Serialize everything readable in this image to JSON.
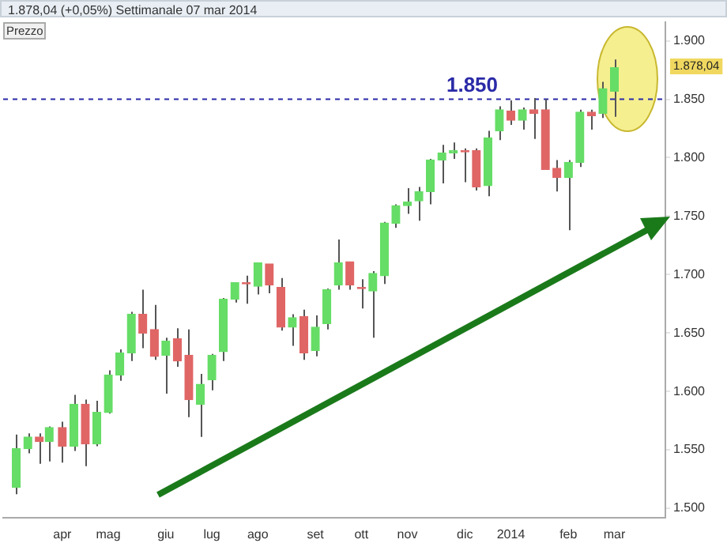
{
  "chart_data": {
    "type": "candlestick",
    "title": "1.878,04 (+0,05%)    Settimanale  07 mar 2014",
    "x": [
      "2013-03-08",
      "2013-03-15",
      "2013-03-22",
      "2013-03-28",
      "2013-04-05",
      "2013-04-12",
      "2013-04-19",
      "2013-04-26",
      "2013-05-03",
      "2013-05-10",
      "2013-05-17",
      "2013-05-24",
      "2013-05-31",
      "2013-06-07",
      "2013-06-14",
      "2013-06-21",
      "2013-06-28",
      "2013-07-05",
      "2013-07-12",
      "2013-07-19",
      "2013-07-26",
      "2013-08-02",
      "2013-08-09",
      "2013-08-16",
      "2013-08-23",
      "2013-08-30",
      "2013-09-06",
      "2013-09-13",
      "2013-09-20",
      "2013-09-27",
      "2013-10-04",
      "2013-10-11",
      "2013-10-18",
      "2013-10-25",
      "2013-11-01",
      "2013-11-08",
      "2013-11-15",
      "2013-11-22",
      "2013-11-29",
      "2013-12-06",
      "2013-12-13",
      "2013-12-20",
      "2013-12-27",
      "2014-01-03",
      "2014-01-10",
      "2014-01-17",
      "2014-01-24",
      "2014-01-31",
      "2014-02-07",
      "2014-02-14",
      "2014-02-21",
      "2014-02-28",
      "2014-03-07"
    ],
    "ohlc": [
      [
        1518,
        1563,
        1512,
        1551
      ],
      [
        1551,
        1564,
        1547,
        1561
      ],
      [
        1561,
        1564,
        1538,
        1557
      ],
      [
        1557,
        1570,
        1540,
        1569
      ],
      [
        1569,
        1574,
        1539,
        1553
      ],
      [
        1553,
        1597,
        1549,
        1589
      ],
      [
        1589,
        1593,
        1536,
        1555
      ],
      [
        1555,
        1592,
        1553,
        1582
      ],
      [
        1582,
        1618,
        1581,
        1614
      ],
      [
        1614,
        1636,
        1609,
        1633
      ],
      [
        1633,
        1668,
        1626,
        1666
      ],
      [
        1666,
        1687,
        1637,
        1650
      ],
      [
        1653,
        1674,
        1627,
        1630
      ],
      [
        1631,
        1646,
        1598,
        1643
      ],
      [
        1645,
        1654,
        1621,
        1626
      ],
      [
        1631,
        1653,
        1578,
        1593
      ],
      [
        1589,
        1615,
        1561,
        1606
      ],
      [
        1610,
        1632,
        1601,
        1631
      ],
      [
        1634,
        1680,
        1626,
        1679
      ],
      [
        1679,
        1693,
        1676,
        1693
      ],
      [
        1693,
        1699,
        1675,
        1692
      ],
      [
        1690,
        1710,
        1683,
        1710
      ],
      [
        1709,
        1709,
        1684,
        1691
      ],
      [
        1689,
        1697,
        1652,
        1655
      ],
      [
        1655,
        1666,
        1639,
        1663
      ],
      [
        1664,
        1670,
        1627,
        1633
      ],
      [
        1635,
        1665,
        1630,
        1655
      ],
      [
        1658,
        1688,
        1653,
        1687
      ],
      [
        1691,
        1730,
        1687,
        1710
      ],
      [
        1711,
        1711,
        1687,
        1691
      ],
      [
        1689,
        1696,
        1671,
        1688
      ],
      [
        1686,
        1703,
        1646,
        1701
      ],
      [
        1699,
        1745,
        1692,
        1744
      ],
      [
        1744,
        1760,
        1740,
        1759
      ],
      [
        1759,
        1774,
        1752,
        1762
      ],
      [
        1763,
        1775,
        1746,
        1771
      ],
      [
        1771,
        1799,
        1760,
        1798
      ],
      [
        1798,
        1811,
        1778,
        1804
      ],
      [
        1804,
        1813,
        1799,
        1806
      ],
      [
        1806,
        1808,
        1779,
        1805
      ],
      [
        1806,
        1808,
        1772,
        1775
      ],
      [
        1776,
        1823,
        1767,
        1817
      ],
      [
        1823,
        1844,
        1815,
        1841
      ],
      [
        1840,
        1849,
        1828,
        1832
      ],
      [
        1832,
        1843,
        1824,
        1841
      ],
      [
        1841,
        1851,
        1816,
        1838
      ],
      [
        1841,
        1850,
        1790,
        1790
      ],
      [
        1791,
        1798,
        1771,
        1783
      ],
      [
        1783,
        1798,
        1738,
        1796
      ],
      [
        1796,
        1841,
        1792,
        1839
      ],
      [
        1839,
        1841,
        1824,
        1836
      ],
      [
        1838,
        1865,
        1834,
        1859
      ],
      [
        1857,
        1884,
        1835,
        1877
      ]
    ],
    "colors": [
      "#66dd66",
      "#66dd66",
      "#e06666",
      "#66dd66",
      "#e06666",
      "#66dd66",
      "#e06666",
      "#66dd66",
      "#66dd66",
      "#66dd66",
      "#66dd66",
      "#e06666",
      "#e06666",
      "#66dd66",
      "#e06666",
      "#e06666",
      "#66dd66",
      "#66dd66",
      "#66dd66",
      "#66dd66",
      "#e06666",
      "#66dd66",
      "#e06666",
      "#e06666",
      "#66dd66",
      "#e06666",
      "#66dd66",
      "#66dd66",
      "#66dd66",
      "#e06666",
      "#e06666",
      "#66dd66",
      "#66dd66",
      "#66dd66",
      "#66dd66",
      "#66dd66",
      "#66dd66",
      "#66dd66",
      "#66dd66",
      "#e06666",
      "#e06666",
      "#66dd66",
      "#66dd66",
      "#e06666",
      "#66dd66",
      "#e06666",
      "#e06666",
      "#e06666",
      "#66dd66",
      "#66dd66",
      "#e06666",
      "#66dd66",
      "#66dd66"
    ],
    "xlim": [
      "2013-02-28",
      "2014-04-07"
    ],
    "xticks": [
      {
        "value": "2013-04-05",
        "label": "apr"
      },
      {
        "value": "2013-05-03",
        "label": "mag"
      },
      {
        "value": "2013-06-07",
        "label": "giu"
      },
      {
        "value": "2013-07-05",
        "label": "lug"
      },
      {
        "value": "2013-08-02",
        "label": "ago"
      },
      {
        "value": "2013-09-06",
        "label": "set"
      },
      {
        "value": "2013-10-04",
        "label": "ott"
      },
      {
        "value": "2013-11-01",
        "label": "nov"
      },
      {
        "value": "2013-12-06",
        "label": "dic"
      },
      {
        "value": "2014-01-03",
        "label": "2014"
      },
      {
        "value": "2014-02-07",
        "label": "feb"
      },
      {
        "value": "2014-03-07",
        "label": "mar"
      }
    ],
    "ylim": [
      1492,
      1916
    ],
    "yticks": [
      {
        "value": 1500,
        "label": "1.500"
      },
      {
        "value": 1550,
        "label": "1.550"
      },
      {
        "value": 1600,
        "label": "1.600"
      },
      {
        "value": 1650,
        "label": "1.650"
      },
      {
        "value": 1700,
        "label": "1.700"
      },
      {
        "value": 1750,
        "label": "1.750"
      },
      {
        "value": 1800,
        "label": "1.800"
      },
      {
        "value": 1850,
        "label": "1.850"
      },
      {
        "value": 1900,
        "label": "1.900"
      }
    ],
    "ref_lines": [
      {
        "axis": "y",
        "value": 1850,
        "label": "1.850",
        "color": "#2a2aa8",
        "line_style": "dashed"
      }
    ],
    "annotations": [
      "Prezzo",
      {
        "text": "1.878,04",
        "y": 1878.04
      }
    ],
    "grid": false,
    "legend": false
  }
}
